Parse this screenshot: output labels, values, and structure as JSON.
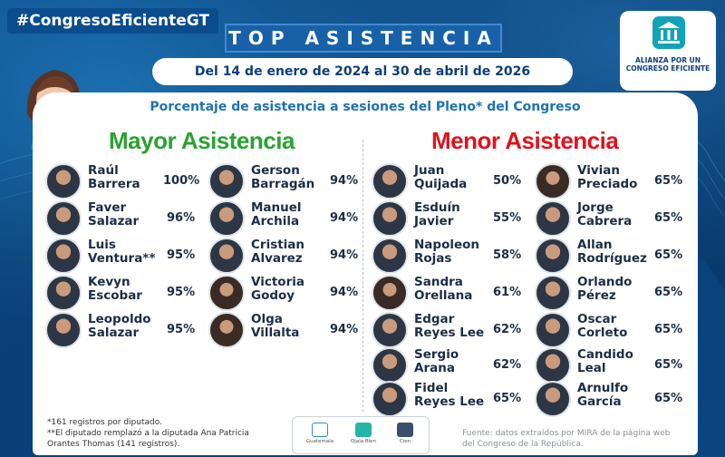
{
  "hashtag": "#CongresoEficienteGT",
  "title": "TOP ASISTENCIA",
  "date_range": "Del 14 de enero de 2024 al 30 de abril de 2026",
  "logo": {
    "line1": "ALIANZA POR UN",
    "line2": "CONGRESO EFICIENTE"
  },
  "subtitle": "Porcentaje de asistencia a sesiones del Pleno* del Congreso",
  "high": {
    "title": "Mayor Asistencia",
    "col1": [
      {
        "first": "Raúl",
        "last": "Barrera",
        "pct": "100%"
      },
      {
        "first": "Faver",
        "last": "Salazar",
        "pct": "96%"
      },
      {
        "first": "Luis",
        "last": "Ventura**",
        "pct": "95%"
      },
      {
        "first": "Kevyn",
        "last": "Escobar",
        "pct": "95%"
      },
      {
        "first": "Leopoldo",
        "last": "Salazar",
        "pct": "95%"
      }
    ],
    "col2": [
      {
        "first": "Gerson",
        "last": "Barragán",
        "pct": "94%"
      },
      {
        "first": "Manuel",
        "last": "Archila",
        "pct": "94%"
      },
      {
        "first": "Cristian",
        "last": "Alvarez",
        "pct": "94%"
      },
      {
        "first": "Victoria",
        "last": "Godoy",
        "pct": "94%"
      },
      {
        "first": "Olga",
        "last": "Villalta",
        "pct": "94%"
      }
    ]
  },
  "low": {
    "title": "Menor Asistencia",
    "col1": [
      {
        "first": "Juan",
        "last": "Quijada",
        "pct": "50%"
      },
      {
        "first": "Esduín",
        "last": "Javier",
        "pct": "55%"
      },
      {
        "first": "Napoleon",
        "last": "Rojas",
        "pct": "58%"
      },
      {
        "first": "Sandra",
        "last": "Orellana",
        "pct": "61%"
      },
      {
        "first": "Edgar",
        "last": "Reyes Lee",
        "pct": "62%"
      },
      {
        "first": "Sergio",
        "last": "Arana",
        "pct": "62%"
      },
      {
        "first": "Fidel",
        "last": "Reyes Lee",
        "pct": "65%"
      }
    ],
    "col2": [
      {
        "first": "Vivian",
        "last": "Preciado",
        "pct": "65%"
      },
      {
        "first": "Jorge",
        "last": "Cabrera",
        "pct": "65%"
      },
      {
        "first": "Allan",
        "last": "Rodríguez",
        "pct": "65%"
      },
      {
        "first": "Orlando",
        "last": "Pérez",
        "pct": "65%"
      },
      {
        "first": "Oscar",
        "last": "Corleto",
        "pct": "65%"
      },
      {
        "first": "Candido",
        "last": "Leal",
        "pct": "65%"
      },
      {
        "first": "Arnulfo",
        "last": "García",
        "pct": "65%"
      }
    ]
  },
  "footnote_1": "*161 registros por diputado.",
  "footnote_2": "**El diputado remplazó a la diputada Ana Patricia Orantes Thomas (141 registros).",
  "source": "Fuente: datos extraídos por MIRA de la página web del Congreso de la República.",
  "sponsors": [
    "Guatemala",
    "Ojala Bien",
    "Cien"
  ],
  "colors": {
    "high": "#2aa232",
    "low": "#e0121e",
    "brand": "#0c3f7a"
  }
}
